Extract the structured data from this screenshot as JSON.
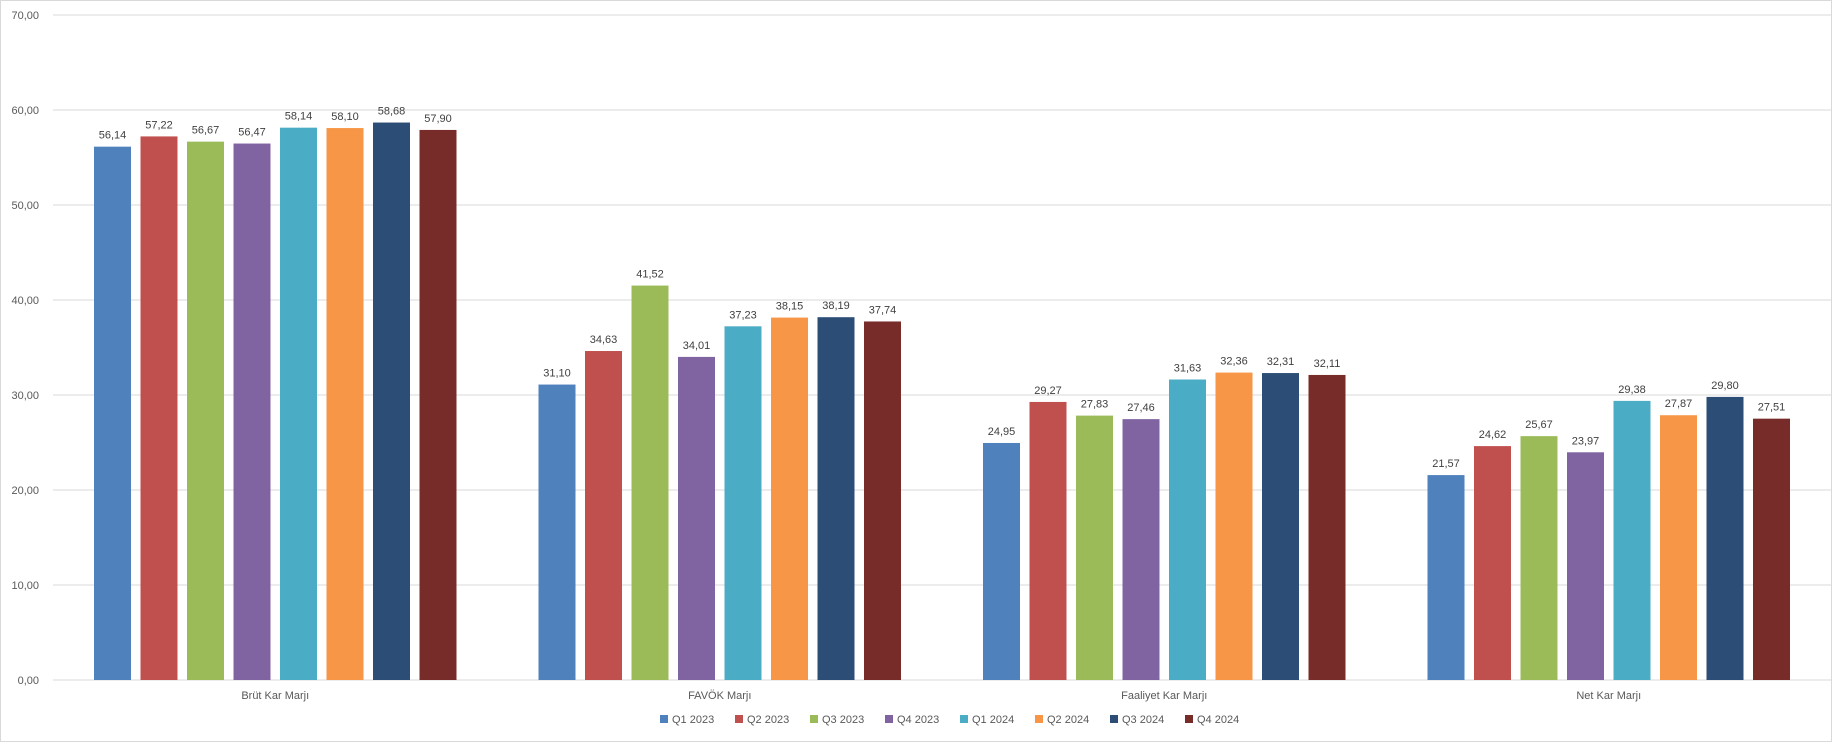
{
  "chart_data": {
    "type": "bar",
    "categories": [
      "Brüt Kar Marjı",
      "FAVÖK Marjı",
      "Faaliyet Kar Marjı",
      "Net Kar Marjı"
    ],
    "series": [
      {
        "name": "Q1 2023",
        "color": "#4f81bd",
        "values": [
          56.14,
          31.1,
          24.95,
          21.57
        ],
        "labels": [
          "56,14",
          "31,10",
          "24,95",
          "21,57"
        ]
      },
      {
        "name": "Q2 2023",
        "color": "#c0504d",
        "values": [
          57.22,
          34.63,
          29.27,
          24.62
        ],
        "labels": [
          "57,22",
          "34,63",
          "29,27",
          "24,62"
        ]
      },
      {
        "name": "Q3 2023",
        "color": "#9bbb59",
        "values": [
          56.67,
          41.52,
          27.83,
          25.67
        ],
        "labels": [
          "56,67",
          "41,52",
          "27,83",
          "25,67"
        ]
      },
      {
        "name": "Q4 2023",
        "color": "#8064a2",
        "values": [
          56.47,
          34.01,
          27.46,
          23.97
        ],
        "labels": [
          "56,47",
          "34,01",
          "27,46",
          "23,97"
        ]
      },
      {
        "name": "Q1 2024",
        "color": "#4bacc6",
        "values": [
          58.14,
          37.23,
          31.63,
          29.38
        ],
        "labels": [
          "58,14",
          "37,23",
          "31,63",
          "29,38"
        ]
      },
      {
        "name": "Q2 2024",
        "color": "#f79646",
        "values": [
          58.1,
          38.15,
          32.36,
          27.87
        ],
        "labels": [
          "58,10",
          "38,15",
          "32,36",
          "27,87"
        ]
      },
      {
        "name": "Q3 2024",
        "color": "#2c4d75",
        "values": [
          58.68,
          38.19,
          32.31,
          29.8
        ],
        "labels": [
          "58,68",
          "38,19",
          "32,31",
          "29,80"
        ]
      },
      {
        "name": "Q4 2024",
        "color": "#772c2a",
        "values": [
          57.9,
          37.74,
          32.11,
          27.51
        ],
        "labels": [
          "57,90",
          "37,74",
          "32,11",
          "27,51"
        ]
      }
    ],
    "ylim": [
      0,
      70
    ],
    "yticks": [
      "0,00",
      "10,00",
      "20,00",
      "30,00",
      "40,00",
      "50,00",
      "60,00",
      "70,00"
    ],
    "grid": true,
    "legend_position": "bottom",
    "gridline_color": "#d9d9d9"
  }
}
